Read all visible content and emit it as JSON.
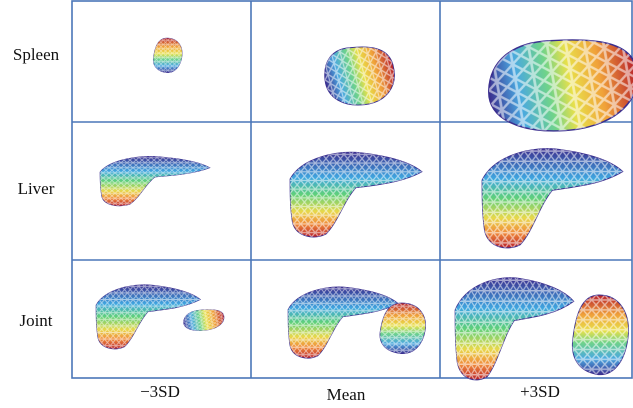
{
  "row_labels": [
    "Spleen",
    "Liver",
    "Joint"
  ],
  "column_labels": [
    "−3SD",
    "Mean",
    "+3SD"
  ]
}
